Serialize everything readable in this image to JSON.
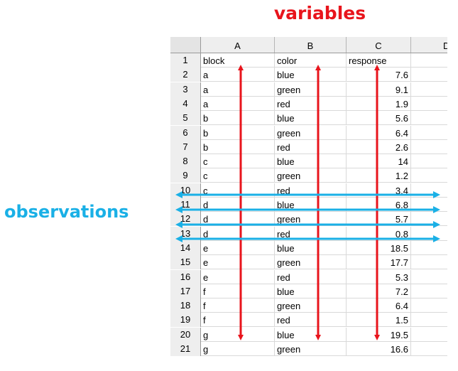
{
  "labels": {
    "variables": "variables",
    "observations": "observations"
  },
  "colors": {
    "variables": "#e8141c",
    "observations": "#1ab0e6",
    "header_bg": "#eeeeee"
  },
  "sheet": {
    "columns": [
      "A",
      "B",
      "C",
      "D"
    ],
    "rows": [
      {
        "n": "1",
        "a": "block",
        "b": "color",
        "c": "response"
      },
      {
        "n": "2",
        "a": "a",
        "b": "blue",
        "c": "7.6"
      },
      {
        "n": "3",
        "a": "a",
        "b": "green",
        "c": "9.1"
      },
      {
        "n": "4",
        "a": "a",
        "b": "red",
        "c": "1.9"
      },
      {
        "n": "5",
        "a": "b",
        "b": "blue",
        "c": "5.6"
      },
      {
        "n": "6",
        "a": "b",
        "b": "green",
        "c": "6.4"
      },
      {
        "n": "7",
        "a": "b",
        "b": "red",
        "c": "2.6"
      },
      {
        "n": "8",
        "a": "c",
        "b": "blue",
        "c": "14"
      },
      {
        "n": "9",
        "a": "c",
        "b": "green",
        "c": "1.2"
      },
      {
        "n": "10",
        "a": "c",
        "b": "red",
        "c": "3.4"
      },
      {
        "n": "11",
        "a": "d",
        "b": "blue",
        "c": "6.8"
      },
      {
        "n": "12",
        "a": "d",
        "b": "green",
        "c": "5.7"
      },
      {
        "n": "13",
        "a": "d",
        "b": "red",
        "c": "0.8"
      },
      {
        "n": "14",
        "a": "e",
        "b": "blue",
        "c": "18.5"
      },
      {
        "n": "15",
        "a": "e",
        "b": "green",
        "c": "17.7"
      },
      {
        "n": "16",
        "a": "e",
        "b": "red",
        "c": "5.3"
      },
      {
        "n": "17",
        "a": "f",
        "b": "blue",
        "c": "7.2"
      },
      {
        "n": "18",
        "a": "f",
        "b": "green",
        "c": "6.4"
      },
      {
        "n": "19",
        "a": "f",
        "b": "red",
        "c": "1.5"
      },
      {
        "n": "20",
        "a": "g",
        "b": "blue",
        "c": "19.5"
      },
      {
        "n": "21",
        "a": "g",
        "b": "green",
        "c": "16.6"
      }
    ]
  }
}
